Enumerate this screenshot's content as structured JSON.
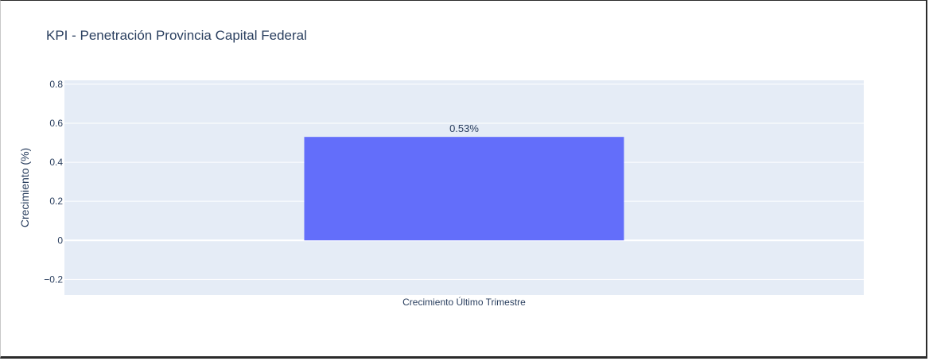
{
  "chart_data": {
    "type": "bar",
    "title": "KPI - Penetración Provincia Capital Federal",
    "xlabel": "",
    "ylabel": "Crecimiento (%)",
    "categories": [
      "Crecimiento Último Trimestre"
    ],
    "values": [
      0.53
    ],
    "data_labels": [
      "0.53%"
    ],
    "ylim": [
      -0.28,
      0.82
    ],
    "yticks": [
      -0.2,
      0,
      0.2,
      0.4,
      0.6,
      0.8
    ],
    "ytick_labels": [
      "−0.2",
      "0",
      "0.2",
      "0.4",
      "0.6",
      "0.8"
    ],
    "grid": true,
    "colors": {
      "bar": "#636efa",
      "plot_bg": "#e5ecf6",
      "grid": "#ffffff",
      "text": "#2a3f5f"
    }
  }
}
